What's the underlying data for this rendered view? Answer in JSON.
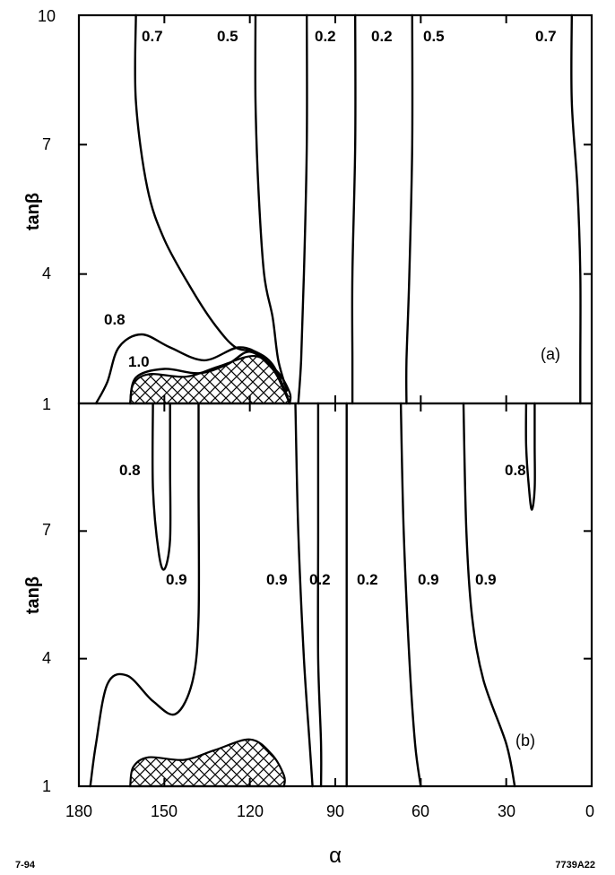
{
  "chart_data": [
    {
      "type": "contour",
      "panel_label": "(a)",
      "xlabel": "α",
      "ylabel": "tanβ",
      "xlim": [
        180,
        0
      ],
      "ylim": [
        1,
        10
      ],
      "x_ticks": [
        "180",
        "150",
        "120",
        "90",
        "60",
        "30",
        "0"
      ],
      "y_ticks": [
        "1",
        "4",
        "7",
        "10"
      ],
      "excluded_region": {
        "pattern": "crosshatch",
        "alpha_range": [
          162,
          106
        ],
        "tanb_max": 2.1
      },
      "contours": [
        {
          "label": "0.7",
          "points": [
            [
              160,
              10
            ],
            [
              160,
              8
            ],
            [
              156,
              6
            ],
            [
              150,
              4.8
            ],
            [
              140,
              3.6
            ],
            [
              132,
              2.8
            ],
            [
              125,
              2.3
            ],
            [
              118,
              2.2
            ],
            [
              112,
              1.9
            ],
            [
              107,
              1.2
            ]
          ]
        },
        {
          "label": "0.5",
          "points": [
            [
              118,
              10
            ],
            [
              118,
              8
            ],
            [
              117,
              6
            ],
            [
              115,
              4
            ],
            [
              112,
              3
            ],
            [
              110,
              2
            ],
            [
              107,
              1.3
            ]
          ]
        },
        {
          "label": "0.2",
          "points": [
            [
              100,
              10
            ],
            [
              100,
              7
            ],
            [
              101,
              4
            ],
            [
              102,
              2
            ],
            [
              103,
              1
            ]
          ]
        },
        {
          "label": "0.2",
          "points": [
            [
              83,
              10
            ],
            [
              83,
              7
            ],
            [
              84,
              4
            ],
            [
              84,
              2
            ],
            [
              84,
              1
            ]
          ]
        },
        {
          "label": "0.5",
          "points": [
            [
              63,
              10
            ],
            [
              63,
              7
            ],
            [
              64,
              4
            ],
            [
              65,
              2
            ],
            [
              65,
              1
            ]
          ]
        },
        {
          "label": "0.7",
          "points": [
            [
              7,
              10
            ],
            [
              7,
              8
            ],
            [
              5,
              6
            ],
            [
              4,
              4
            ],
            [
              4,
              2
            ],
            [
              4,
              1
            ]
          ]
        },
        {
          "label": "0.8",
          "points": [
            [
              174,
              1
            ],
            [
              170,
              1.5
            ],
            [
              166,
              2.3
            ],
            [
              158,
              2.6
            ],
            [
              148,
              2.3
            ],
            [
              136,
              2.0
            ],
            [
              124,
              2.3
            ],
            [
              116,
              2.1
            ],
            [
              110,
              1.6
            ],
            [
              106,
              1
            ]
          ]
        },
        {
          "label": "1.0",
          "points": [
            [
              162,
              1
            ],
            [
              160,
              1.6
            ],
            [
              150,
              1.8
            ],
            [
              138,
              1.7
            ],
            [
              128,
              1.9
            ],
            [
              120,
              2.2
            ],
            [
              112,
              1.8
            ],
            [
              108,
              1.3
            ],
            [
              106,
              1
            ]
          ]
        }
      ]
    },
    {
      "type": "contour",
      "panel_label": "(b)",
      "xlabel": "α",
      "ylabel": "tanβ",
      "xlim": [
        180,
        0
      ],
      "ylim": [
        1,
        10
      ],
      "x_ticks": [
        "180",
        "150",
        "120",
        "90",
        "60",
        "30",
        "0"
      ],
      "y_ticks": [
        "1",
        "4",
        "7",
        "10"
      ],
      "excluded_region": {
        "pattern": "crosshatch",
        "alpha_range": [
          162,
          108
        ],
        "tanb_max": 2.1
      },
      "contours": [
        {
          "label": "0.8",
          "points": [
            [
              154,
              10
            ],
            [
              154,
              8
            ],
            [
              152,
              6.5
            ],
            [
              150,
              6.1
            ],
            [
              148,
              6.8
            ],
            [
              148,
              8.5
            ],
            [
              148,
              10
            ]
          ]
        },
        {
          "label": "0.8",
          "points": [
            [
              23,
              10
            ],
            [
              23,
              9
            ],
            [
              22,
              8
            ],
            [
              21,
              7.5
            ],
            [
              20,
              8
            ],
            [
              20,
              9
            ],
            [
              20,
              10
            ]
          ]
        },
        {
          "label": "0.9",
          "points": [
            [
              176,
              1
            ],
            [
              174,
              2
            ],
            [
              170,
              3.4
            ],
            [
              163,
              3.6
            ],
            [
              154,
              3.0
            ],
            [
              146,
              2.7
            ],
            [
              140,
              3.5
            ],
            [
              138,
              5
            ],
            [
              138,
              8
            ],
            [
              138,
              10
            ]
          ]
        },
        {
          "label": "0.9",
          "points": [
            [
              104,
              10
            ],
            [
              103,
              7
            ],
            [
              101,
              4
            ],
            [
              99,
              2
            ],
            [
              98,
              1
            ]
          ]
        },
        {
          "label": "0.2",
          "points": [
            [
              96,
              10
            ],
            [
              96,
              7
            ],
            [
              96,
              4
            ],
            [
              95,
              2
            ],
            [
              95,
              1
            ]
          ]
        },
        {
          "label": "0.2",
          "points": [
            [
              86,
              10
            ],
            [
              86,
              7
            ],
            [
              86,
              4
            ],
            [
              86,
              2
            ],
            [
              86,
              1
            ]
          ]
        },
        {
          "label": "0.9",
          "points": [
            [
              67,
              10
            ],
            [
              66,
              7
            ],
            [
              64,
              4
            ],
            [
              62,
              2
            ],
            [
              60,
              1
            ]
          ]
        },
        {
          "label": "0.9",
          "points": [
            [
              45,
              10
            ],
            [
              44,
              7
            ],
            [
              42,
              5
            ],
            [
              38,
              3.5
            ],
            [
              30,
              2
            ],
            [
              27,
              1
            ]
          ]
        }
      ]
    }
  ],
  "footer": {
    "left_note": "7-94",
    "right_note": "7739A22"
  }
}
